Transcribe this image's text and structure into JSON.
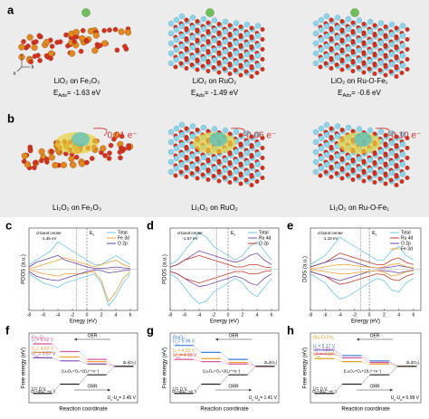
{
  "figure": {
    "structure_panels": [
      {
        "letter": "a",
        "items": [
          {
            "caption": "LiO₂ on Fe₂O₃",
            "energy": {
              "symbol": "E",
              "sub": "Ads",
              "value": "= -1.63 eV"
            }
          },
          {
            "caption": "LiO₂ on RuO₂",
            "energy": {
              "symbol": "E",
              "sub": "Ads",
              "value": "= -1.49 eV"
            }
          },
          {
            "caption": "LiO₂ on Ru-O-Fe₁",
            "energy": {
              "symbol": "E",
              "sub": "Ads",
              "value": "= -0.6 eV"
            }
          }
        ]
      },
      {
        "letter": "b",
        "items": [
          {
            "caption": "Li₂O₂ on Fe₂O₃",
            "charge": "0.01 e⁻"
          },
          {
            "caption": "Li₂O₂ on RuO₂",
            "charge": "-0.06 e⁻"
          },
          {
            "caption": "Li₂O₂ on Ru-O-Fe₁",
            "charge": "-0.10 e⁻"
          }
        ]
      }
    ],
    "axis_triad_labels": [
      "c",
      "b",
      "a"
    ]
  },
  "chart_data": [
    {
      "type": "line",
      "letter": "c",
      "xlabel": "Enegy (eV)",
      "ylabel": "PDOS (a.u.)",
      "annotation": "d-band center",
      "d_band_center": -1.45,
      "d_band_center_label": "-1.45 eV",
      "fermi": {
        "symbol": "E",
        "sub": "f"
      },
      "x": [
        -8,
        -7,
        -6,
        -5,
        -4,
        -3,
        -2,
        -1,
        0,
        1,
        2,
        3,
        4,
        5,
        6
      ],
      "xlim": [
        -8,
        7
      ],
      "xticks": [
        -8,
        -6,
        -4,
        -2,
        0,
        2,
        4,
        6
      ],
      "ylim": [
        -9,
        9
      ],
      "series": [
        {
          "name": "Total",
          "color": "#6fc6e6",
          "values": [
            1,
            2,
            3,
            4,
            6,
            5,
            4,
            3,
            2,
            1,
            1,
            2,
            3,
            2,
            1
          ],
          "values_down": [
            -1,
            -2,
            -3,
            -3.5,
            -4,
            -3,
            -2.5,
            -2,
            -1.5,
            -1,
            -3,
            -8,
            -6,
            -3,
            -1
          ]
        },
        {
          "name": "Fe 3d",
          "color": "#f0a030",
          "values": [
            0.2,
            0.5,
            1,
            1.5,
            2,
            2.5,
            2,
            1.5,
            1,
            0.5,
            1,
            1.5,
            2,
            1,
            0.5
          ],
          "values_down": [
            -0.2,
            -0.5,
            -1,
            -1.2,
            -1.5,
            -1,
            -1,
            -1,
            -0.8,
            -0.5,
            -2.5,
            -7,
            -5,
            -2,
            -0.5
          ]
        },
        {
          "name": "O 2p",
          "color": "#6a3fa0",
          "values": [
            0.5,
            1.5,
            2,
            2.5,
            3,
            2,
            1.5,
            1,
            0.5,
            0.2,
            0.2,
            0.3,
            0.5,
            0.3,
            0.2
          ],
          "values_down": [
            -0.5,
            -1.5,
            -2,
            -2.3,
            -2.5,
            -2,
            -1.5,
            -1,
            -0.5,
            -0.2,
            -0.3,
            -0.8,
            -0.6,
            -0.3,
            -0.2
          ]
        }
      ]
    },
    {
      "type": "line",
      "letter": "d",
      "xlabel": "Energy (eV)",
      "ylabel": "PDOS (a.u.)",
      "annotation": "d-band center",
      "d_band_center": -1.57,
      "d_band_center_label": "-1.57 eV",
      "fermi": {
        "symbol": "E",
        "sub": "f"
      },
      "x": [
        -8,
        -7,
        -6,
        -5,
        -4,
        -3,
        -2,
        -1,
        0,
        1,
        2,
        3,
        4,
        5,
        6
      ],
      "xlim": [
        -8,
        7
      ],
      "xticks": [
        -8,
        -6,
        -4,
        -2,
        0,
        2,
        4,
        6
      ],
      "ylim": [
        -9,
        9
      ],
      "series": [
        {
          "name": "Total",
          "color": "#6fc6e6",
          "values": [
            1,
            2,
            4,
            6,
            8,
            7,
            5,
            4,
            3,
            2,
            3,
            5,
            6,
            4,
            2
          ],
          "values_down": [
            -1,
            -2,
            -4,
            -6,
            -7.5,
            -7,
            -5,
            -4,
            -3,
            -2,
            -3,
            -5,
            -6,
            -4,
            -2
          ]
        },
        {
          "name": "Ru 4d",
          "color": "#7b4bb0",
          "values": [
            0.5,
            1,
            2,
            3,
            4,
            3.5,
            3,
            2.5,
            2,
            1.5,
            2,
            3,
            3.5,
            2,
            1
          ],
          "values_down": [
            -0.5,
            -1,
            -2,
            -3,
            -3.8,
            -3.5,
            -3,
            -2.5,
            -2,
            -1.5,
            -2,
            -3,
            -3.5,
            -2,
            -1
          ]
        },
        {
          "name": "O 2p",
          "color": "#c0392b",
          "values": [
            0.5,
            1,
            2,
            2.5,
            3,
            2.5,
            2,
            1.5,
            1,
            0.5,
            0.5,
            1,
            1,
            0.5,
            0.3
          ],
          "values_down": [
            -0.5,
            -1,
            -2,
            -2.5,
            -3,
            -2.5,
            -2,
            -1.5,
            -1,
            -0.5,
            -0.5,
            -1,
            -1,
            -0.5,
            -0.3
          ]
        }
      ]
    },
    {
      "type": "line",
      "letter": "e",
      "xlabel": "Energy (eV)",
      "ylabel": "DOS (a.u.)",
      "annotation": "d-band center",
      "d_band_center": -1.18,
      "d_band_center_label": "-1.18 eV",
      "fermi": {
        "symbol": "E",
        "sub": "f"
      },
      "x": [
        -8,
        -7,
        -6,
        -5,
        -4,
        -3,
        -2,
        -1,
        0,
        1,
        2,
        3,
        4,
        5,
        6
      ],
      "xlim": [
        -8,
        7
      ],
      "xticks": [
        -8,
        -6,
        -4,
        -2,
        0,
        2,
        4,
        6
      ],
      "ylim": [
        -9,
        9
      ],
      "series": [
        {
          "name": "Total",
          "color": "#6fc6e6",
          "values": [
            1,
            2,
            3,
            5,
            7,
            6,
            5,
            4,
            3,
            2,
            2,
            4,
            5,
            3,
            2
          ],
          "values_down": [
            -1,
            -2,
            -3,
            -5,
            -6.5,
            -6,
            -5,
            -4,
            -3,
            -2,
            -2.5,
            -4.5,
            -5,
            -3,
            -2
          ]
        },
        {
          "name": "Ru 4d",
          "color": "#c0392b",
          "values": [
            0.5,
            1,
            1.5,
            2.5,
            3.5,
            3,
            2.5,
            2,
            1.5,
            1,
            1,
            2,
            2.5,
            1.5,
            1
          ],
          "values_down": [
            -0.5,
            -1,
            -1.5,
            -2.5,
            -3.3,
            -3,
            -2.5,
            -2,
            -1.5,
            -1,
            -1.2,
            -2.2,
            -2.5,
            -1.5,
            -1
          ]
        },
        {
          "name": "O 2p",
          "color": "#6a3fa0",
          "values": [
            0.5,
            1,
            1.5,
            2,
            2.5,
            2,
            1.5,
            1,
            0.5,
            0.3,
            0.3,
            0.5,
            0.8,
            0.5,
            0.2
          ],
          "values_down": [
            -0.5,
            -1,
            -1.5,
            -2,
            -2.5,
            -2,
            -1.5,
            -1,
            -0.5,
            -0.3,
            -0.3,
            -0.5,
            -0.8,
            -0.5,
            -0.2
          ]
        },
        {
          "name": "Fe 3d",
          "color": "#f0a030",
          "values": [
            0.2,
            0.3,
            0.5,
            0.8,
            1,
            1,
            0.8,
            0.6,
            0.5,
            0.3,
            0.5,
            1,
            1.2,
            0.6,
            0.3
          ],
          "values_down": [
            -0.2,
            -0.3,
            -0.5,
            -0.8,
            -1,
            -1,
            -0.8,
            -0.6,
            -0.5,
            -0.3,
            -0.6,
            -1.5,
            -1.2,
            -0.6,
            -0.3
          ]
        }
      ]
    },
    {
      "type": "step",
      "letter": "f",
      "catalyst": "Fe₂O₃",
      "catalyst_color": "#d4569a",
      "xlabel": "Reaction coordinate",
      "ylabel": "Free energy (eV)",
      "ylim": [
        -1,
        8
      ],
      "top_arrow": "OER",
      "bottom_arrow": "ORR",
      "end_label": "2Li(O₂)",
      "mid_label": "(Li₂O₂+O₂+2(Li⁺+e⁻)",
      "start_label": "O₂+4(Li⁺+e⁻)",
      "gap": {
        "a": "U",
        "a_sub": "c",
        "b": "-U",
        "b_sub": "d",
        "value": "= 2.45 V"
      },
      "series": [
        {
          "symbol": "U",
          "sub": "c",
          "text": "= 6.02 V",
          "color": "#d4569a",
          "values": [
            6.6,
            5.6,
            4.6,
            3.7
          ]
        },
        {
          "symbol": "U",
          "sub": "c",
          "text": "= 4.63 V",
          "color": "#f0a030",
          "values": [
            5.5,
            4.9,
            4.3,
            3.7
          ]
        },
        {
          "symbol": "U",
          "sub": "eq",
          "text": "= 3.57 V",
          "color": "#7b4bb0",
          "values": [
            4.8,
            4.4,
            4.0,
            3.7
          ]
        },
        {
          "symbol": "U",
          "text": "= 0 V",
          "color": "#222222",
          "values": [
            0.2,
            1.4,
            2.6,
            3.7
          ]
        }
      ]
    },
    {
      "type": "step",
      "letter": "g",
      "catalyst": "RuO₂",
      "catalyst_color": "#3a7bd5",
      "xlabel": "Reaction coordinate",
      "ylabel": "Free energy (eV)",
      "ylim": [
        -1,
        8
      ],
      "top_arrow": "OER",
      "bottom_arrow": "ORR",
      "end_label": "2Li(O₂)",
      "mid_label": "(Li₂O₂+O₂+2(Li⁺+e⁻)",
      "start_label": "O₂+4(Li⁺+e⁻)",
      "gap": {
        "a": "U",
        "a_sub": "c",
        "b": "-U",
        "b_sub": "d",
        "value": "= 1.41 V"
      },
      "series": [
        {
          "symbol": "U",
          "sub": "c",
          "text": "= 5.96 V",
          "color": "#3a7bd5",
          "values": [
            6.4,
            5.5,
            4.6,
            3.7
          ]
        },
        {
          "symbol": "U",
          "sub": "c",
          "text": "= 4.33 V",
          "color": "#f0a030",
          "values": [
            5.2,
            4.7,
            4.2,
            3.7
          ]
        },
        {
          "symbol": "U",
          "sub": "eq",
          "text": "= 4.15 V",
          "color": "#d4569a",
          "values": [
            4.6,
            4.3,
            4.0,
            3.7
          ]
        },
        {
          "symbol": "U",
          "text": "= 0 V",
          "color": "#222222",
          "values": [
            0.2,
            1.4,
            2.6,
            3.7
          ]
        }
      ]
    },
    {
      "type": "step",
      "letter": "h",
      "catalyst": "Ru-O-Fe₁",
      "catalyst_color": "#e0a020",
      "xlabel": "Reaction coordinate",
      "ylabel": "Free energy (eV)",
      "ylim": [
        -1,
        8
      ],
      "top_arrow": "OER",
      "bottom_arrow": "ORR",
      "end_label": "2Li(O₂)",
      "mid_label": "(Li₂O₂+O₂+2(Li⁺+e⁻)",
      "start_label": "O₂+4(Li⁺+e⁻)",
      "gap": {
        "a": "U",
        "a_sub": "c",
        "b": "-U",
        "b_sub": "d",
        "value": "= 0.99 V"
      },
      "series": [
        {
          "symbol": "U",
          "sub": "c",
          "text": "= 5.17 V",
          "color": "#3a7bd5",
          "values": [
            5.8,
            5.1,
            4.4,
            3.7
          ]
        },
        {
          "symbol": "U",
          "sub": "c",
          "text": "= 4.83 V",
          "color": "#d4569a",
          "values": [
            5.3,
            4.8,
            4.2,
            3.7
          ]
        },
        {
          "symbol": "U",
          "sub": "eq",
          "text": "= 4.18 V",
          "color": "#e0a020",
          "values": [
            4.7,
            4.3,
            4.0,
            3.7
          ]
        },
        {
          "symbol": "U",
          "text": "= 0 V",
          "color": "#222222",
          "values": [
            0.2,
            1.4,
            2.6,
            3.7
          ]
        }
      ]
    }
  ]
}
